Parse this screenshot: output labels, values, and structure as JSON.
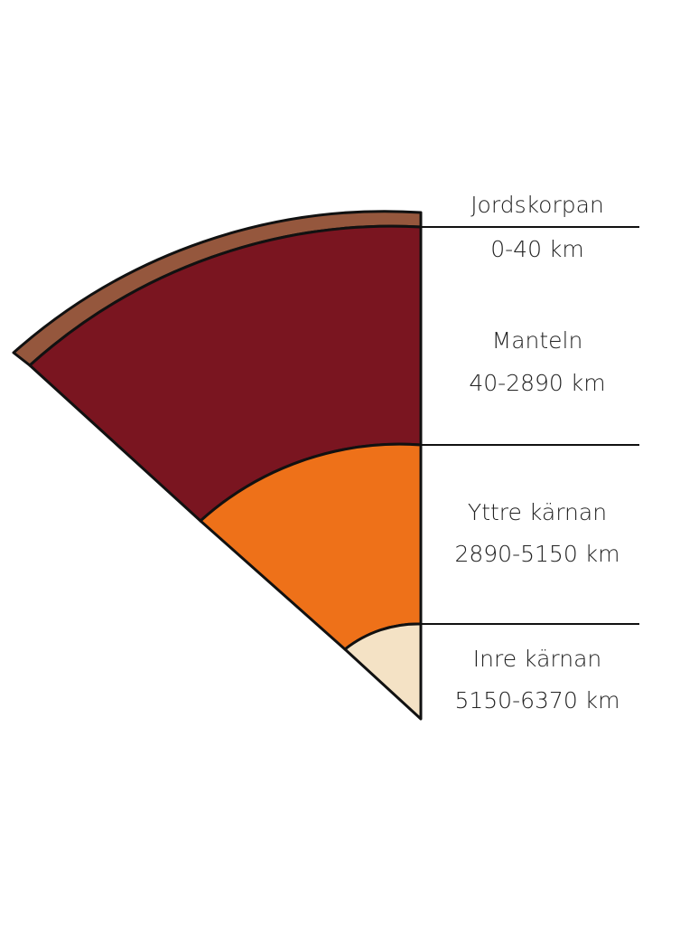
{
  "layers": [
    {
      "name": "Jordskorpan",
      "depth": "0-40 km"
    },
    {
      "name": "Manteln",
      "depth": "40-2890 km"
    },
    {
      "name": "Yttre kärnan",
      "depth": "2890-5150 km"
    },
    {
      "name": "Inre kärnan",
      "depth": "5150-6370 km"
    }
  ]
}
